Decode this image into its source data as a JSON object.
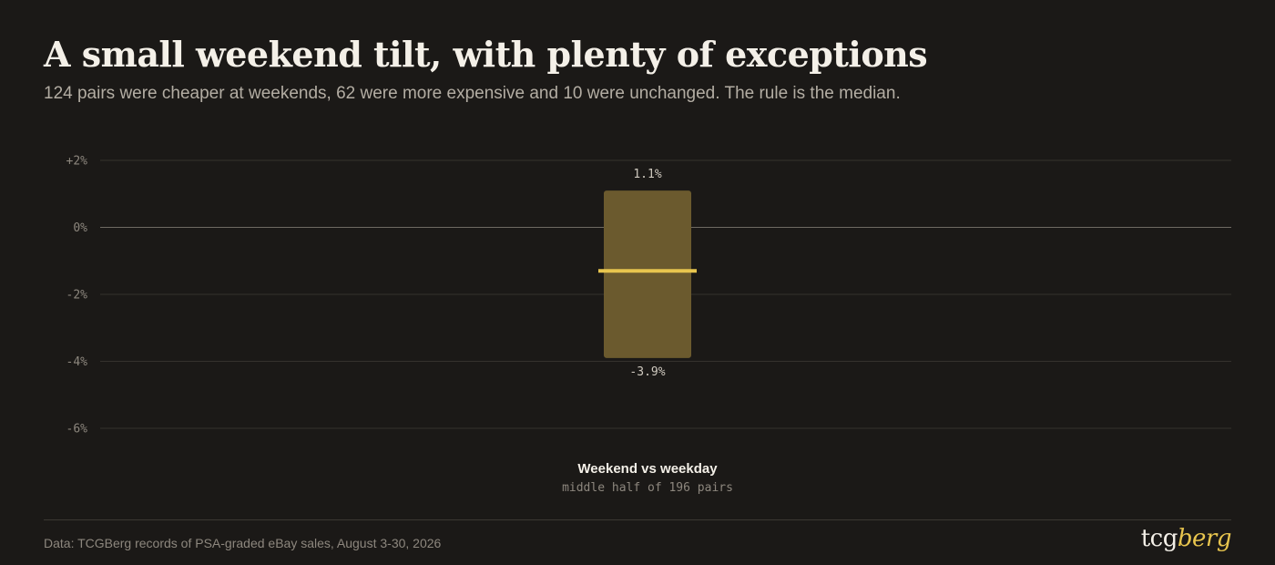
{
  "header": {
    "title": "A small weekend tilt, with plenty of exceptions",
    "subtitle": "124 pairs were cheaper at weekends, 62 were more expensive and 10 were unchanged. The rule is the median."
  },
  "chart_data": {
    "type": "box",
    "y_ticks": [
      {
        "value": 2,
        "label": "+2%"
      },
      {
        "value": 0,
        "label": "0%"
      },
      {
        "value": -2,
        "label": "-2%"
      },
      {
        "value": -4,
        "label": "-4%"
      },
      {
        "value": -6,
        "label": "-6%"
      }
    ],
    "ylim": [
      -6,
      2
    ],
    "grid": true,
    "categories": [
      {
        "label": "Weekend vs weekday",
        "sublabel": "middle half of 196 pairs",
        "q1": -3.9,
        "q3": 1.1,
        "median": -1.3,
        "q1_label": "-3.9%",
        "q3_label": "1.1%"
      }
    ],
    "colors": {
      "box_fill": "#6b5a2e",
      "median_line": "#e8c54e",
      "grid": "#35322d",
      "zero_line": "#6e6a63",
      "tick_text": "#8d877e",
      "value_text": "#cfc9bf",
      "category_label": "#f4f0e8",
      "category_sublabel": "#8d877e"
    }
  },
  "footer": {
    "source": "Data: TCGBerg records of PSA-graded eBay sales, August 3-30, 2026",
    "logo_part1": "tcg",
    "logo_part2": "berg"
  }
}
